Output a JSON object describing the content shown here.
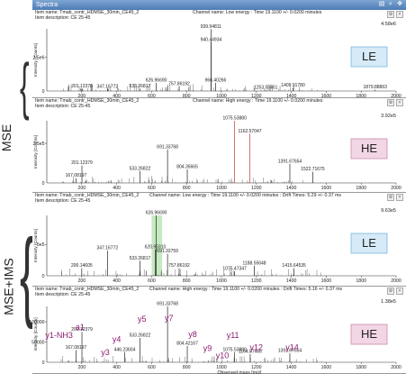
{
  "window": {
    "title": "Spectra"
  },
  "side_labels": {
    "top": "MSE",
    "bottom": "MSE+IMS"
  },
  "panels": [
    {
      "item_name": "Item name: Tmab_contr_HDMSE_30min_CE45_2",
      "item_description": "Item description: CE 25-45",
      "channel": "Channel name: Low energy : Time 19.1100 +/- 0.0200 minutes",
      "max_label": "4.58e6",
      "badge": "LE",
      "badge_color": "#d6eaf8",
      "badge_border": "#7ab6e0"
    },
    {
      "item_name": "Item name: Tmab_contr_HDMSE_30min_CE45_2",
      "item_description": "Item description: CE 25-45",
      "channel": "Channel name: High energy : Time 19.1100 +/- 0.0200 minutes",
      "max_label": "3.92e5",
      "badge": "HE",
      "badge_color": "#f3d6e6",
      "badge_border": "#c98aab"
    },
    {
      "item_name": "Item name: Tmab_contr_HDMSE_30min_CE45_2",
      "item_description": "Item description: CE 25-45",
      "channel": "Channel name: Low energy : Time 19.1100 +/- 0.0200 minutes : Drift Times: 5.29 +/- 0.37 ms",
      "max_label": "9.63e5",
      "badge": "LE",
      "badge_color": "#d6eaf8",
      "badge_border": "#7ab6e0"
    },
    {
      "item_name": "Item name: Tmab_contr_HDMSE_30min_CE45_2",
      "item_description": "Item description: CE 25-45",
      "channel": "Channel name: High energy : Time 19.1100 +/- 0.0200 minutes : Drift Times: 5.16 +/- 0.37 ms",
      "max_label": "1.38e5",
      "badge": "HE",
      "badge_color": "#f3d6e6",
      "badge_border": "#c98aab"
    }
  ],
  "chart_data": [
    {
      "type": "bar",
      "ylabel": "Intensity [Counts]",
      "xlim": [
        0,
        2000
      ],
      "ylim": [
        0,
        4600000
      ],
      "x_ticks": [
        200,
        400,
        600,
        800,
        1000,
        1200,
        1400,
        1600,
        1800,
        2000
      ],
      "y_ticks": [
        {
          "v": 2500000,
          "label": "2.5e6"
        }
      ],
      "peaks": [
        {
          "x": 201.12378,
          "y": 180000,
          "label": "201.12378"
        },
        {
          "x": 347.16772,
          "y": 150000,
          "label": "347.16772"
        },
        {
          "x": 533.26817,
          "y": 180000,
          "label": "533.26817"
        },
        {
          "x": 626.9669,
          "y": 600000,
          "label": "626.96690"
        },
        {
          "x": 757.86192,
          "y": 350000,
          "label": "757.86192"
        },
        {
          "x": 939.94811,
          "y": 4580000,
          "label": "939.94811"
        },
        {
          "x": 940.44934,
          "y": 3600000,
          "label": "940.44934"
        },
        {
          "x": 966.40266,
          "y": 600000,
          "label": "966.40266"
        },
        {
          "x": 1253.59451,
          "y": 80000,
          "label": "1253.59451"
        },
        {
          "x": 1409.9178,
          "y": 250000,
          "label": "1409.91780"
        },
        {
          "x": 1879.88863,
          "y": 90000,
          "label": "1879.88863"
        }
      ]
    },
    {
      "type": "bar",
      "ylabel": "Intensity [Counts]",
      "xlim": [
        0,
        2000
      ],
      "ylim": [
        0,
        392000
      ],
      "x_ticks": [
        200,
        400,
        600,
        800,
        1000,
        1200,
        1400,
        1600,
        1800,
        2000
      ],
      "y_ticks": [
        {
          "v": 250000,
          "label": "2.5e5"
        }
      ],
      "peaks": [
        {
          "x": 167.08197,
          "y": 30000,
          "label": "167.08197"
        },
        {
          "x": 201.12379,
          "y": 110000,
          "label": "201.12379"
        },
        {
          "x": 533.26822,
          "y": 75000,
          "label": "533.26822"
        },
        {
          "x": 691.33768,
          "y": 210000,
          "label": "691.33768"
        },
        {
          "x": 804.35665,
          "y": 85000,
          "label": "804.35665"
        },
        {
          "x": 1075.5388,
          "y": 392000,
          "label": "1075.53880"
        },
        {
          "x": 1162.57047,
          "y": 310000,
          "label": "1162.57047"
        },
        {
          "x": 1391.67654,
          "y": 120000,
          "label": "1391.67654"
        },
        {
          "x": 1522.71675,
          "y": 70000,
          "label": "1522.71675"
        }
      ]
    },
    {
      "type": "bar",
      "ylabel": "Intensity [Counts]",
      "xlim": [
        0,
        2000
      ],
      "ylim": [
        0,
        963000
      ],
      "x_ticks": [
        200,
        400,
        600,
        800,
        1000,
        1200,
        1400,
        1600,
        1800,
        2000
      ],
      "y_ticks": [
        {
          "v": 500000,
          "label": "5e5"
        }
      ],
      "highlight": [
        600,
        660
      ],
      "peaks": [
        {
          "x": 200.14605,
          "y": 120000,
          "label": "200.14605"
        },
        {
          "x": 347.16772,
          "y": 400000,
          "label": "347.16772"
        },
        {
          "x": 533.26817,
          "y": 240000,
          "label": "533.26817"
        },
        {
          "x": 620.9631,
          "y": 420000,
          "label": "620.96310"
        },
        {
          "x": 626.9669,
          "y": 963000,
          "label": "626.96690"
        },
        {
          "x": 691.33759,
          "y": 350000,
          "label": "691.33759"
        },
        {
          "x": 757.86192,
          "y": 120000,
          "label": "757.86192"
        },
        {
          "x": 1075.47347,
          "y": 70000,
          "label": "1075.47347"
        },
        {
          "x": 1188.55648,
          "y": 160000,
          "label": "1188.55648"
        },
        {
          "x": 1415.64535,
          "y": 120000,
          "label": "1415.64535"
        }
      ]
    },
    {
      "type": "bar",
      "ylabel": "Intensity [Counts]",
      "xlabel": "Observed mass [m/z]",
      "xlim": [
        0,
        2000
      ],
      "ylim": [
        0,
        138000
      ],
      "x_ticks": [
        200,
        400,
        600,
        800,
        1000,
        1200,
        1400,
        1600,
        1800,
        2000
      ],
      "y_ticks": [
        {
          "v": 50000,
          "label": "50000"
        },
        {
          "v": 100000,
          "label": "100000"
        }
      ],
      "peaks": [
        {
          "x": 167.08197,
          "y": 30000,
          "label": "167.08197"
        },
        {
          "x": 201.12379,
          "y": 75000,
          "label": "201.12379"
        },
        {
          "x": 446.23604,
          "y": 25000,
          "label": "446.23604"
        },
        {
          "x": 533.26822,
          "y": 60000,
          "label": "533.26822"
        },
        {
          "x": 691.33768,
          "y": 138000,
          "label": "691.33768"
        },
        {
          "x": 804.42167,
          "y": 40000,
          "label": "804.42167"
        },
        {
          "x": 1075.5388,
          "y": 25000,
          "label": "1075.53880"
        },
        {
          "x": 1164.57466,
          "y": 20000,
          "label": "1164.57466"
        },
        {
          "x": 1391.67654,
          "y": 22000,
          "label": "1391.67654"
        }
      ],
      "annotations": [
        {
          "text": "y1-NH3",
          "x": 70,
          "y": 60000
        },
        {
          "text": "a1",
          "x": 190,
          "y": 80000
        },
        {
          "text": "y3",
          "x": 335,
          "y": 18000
        },
        {
          "text": "y4",
          "x": 400,
          "y": 50000
        },
        {
          "text": "y5",
          "x": 545,
          "y": 100000
        },
        {
          "text": "y7",
          "x": 700,
          "y": 102000
        },
        {
          "text": "y8",
          "x": 835,
          "y": 62000
        },
        {
          "text": "y9",
          "x": 920,
          "y": 28000
        },
        {
          "text": "y10",
          "x": 1005,
          "y": 10000
        },
        {
          "text": "y11",
          "x": 1065,
          "y": 60000
        },
        {
          "text": "y12",
          "x": 1200,
          "y": 30000
        },
        {
          "text": "y14",
          "x": 1405,
          "y": 30000
        }
      ],
      "annotation_color": "#8a1a6e"
    }
  ]
}
